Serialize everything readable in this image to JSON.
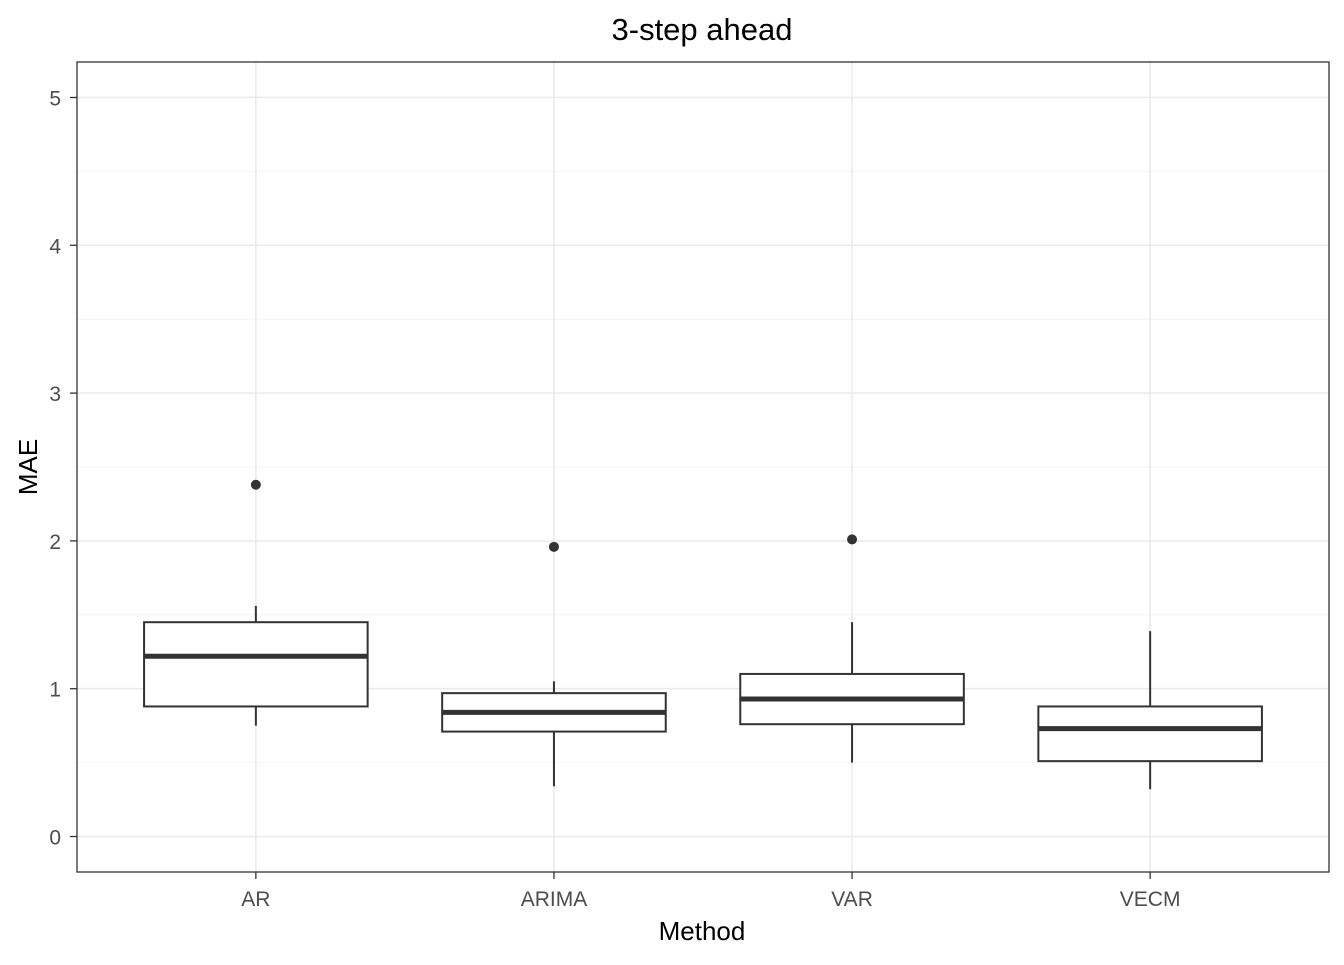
{
  "chart_data": {
    "type": "boxplot",
    "title": "3-step ahead",
    "xlabel": "Method",
    "ylabel": "MAE",
    "categories": [
      "AR",
      "ARIMA",
      "VAR",
      "VECM"
    ],
    "ylim": [
      -0.24,
      5.24
    ],
    "y_ticks": [
      0,
      1,
      2,
      3,
      4,
      5
    ],
    "y_tick_labels": [
      "0",
      "1",
      "2",
      "3",
      "4",
      "5"
    ],
    "grid": true,
    "boxes": [
      {
        "category": "AR",
        "whisker_low": 0.75,
        "q1": 0.88,
        "median": 1.22,
        "q3": 1.45,
        "whisker_high": 1.56,
        "outliers": [
          2.38
        ]
      },
      {
        "category": "ARIMA",
        "whisker_low": 0.34,
        "q1": 0.71,
        "median": 0.84,
        "q3": 0.97,
        "whisker_high": 1.05,
        "outliers": [
          1.96
        ]
      },
      {
        "category": "VAR",
        "whisker_low": 0.5,
        "q1": 0.76,
        "median": 0.93,
        "q3": 1.1,
        "whisker_high": 1.45,
        "outliers": [
          2.01
        ]
      },
      {
        "category": "VECM",
        "whisker_low": 0.32,
        "q1": 0.51,
        "median": 0.73,
        "q3": 0.88,
        "whisker_high": 1.39,
        "outliers": []
      }
    ],
    "colors": {
      "box_stroke": "#333333",
      "grid_major": "#ebebeb",
      "grid_minor": "#f4f4f4",
      "panel_border": "#333333",
      "tick_label": "#4d4d4d",
      "title": "#000000"
    }
  }
}
